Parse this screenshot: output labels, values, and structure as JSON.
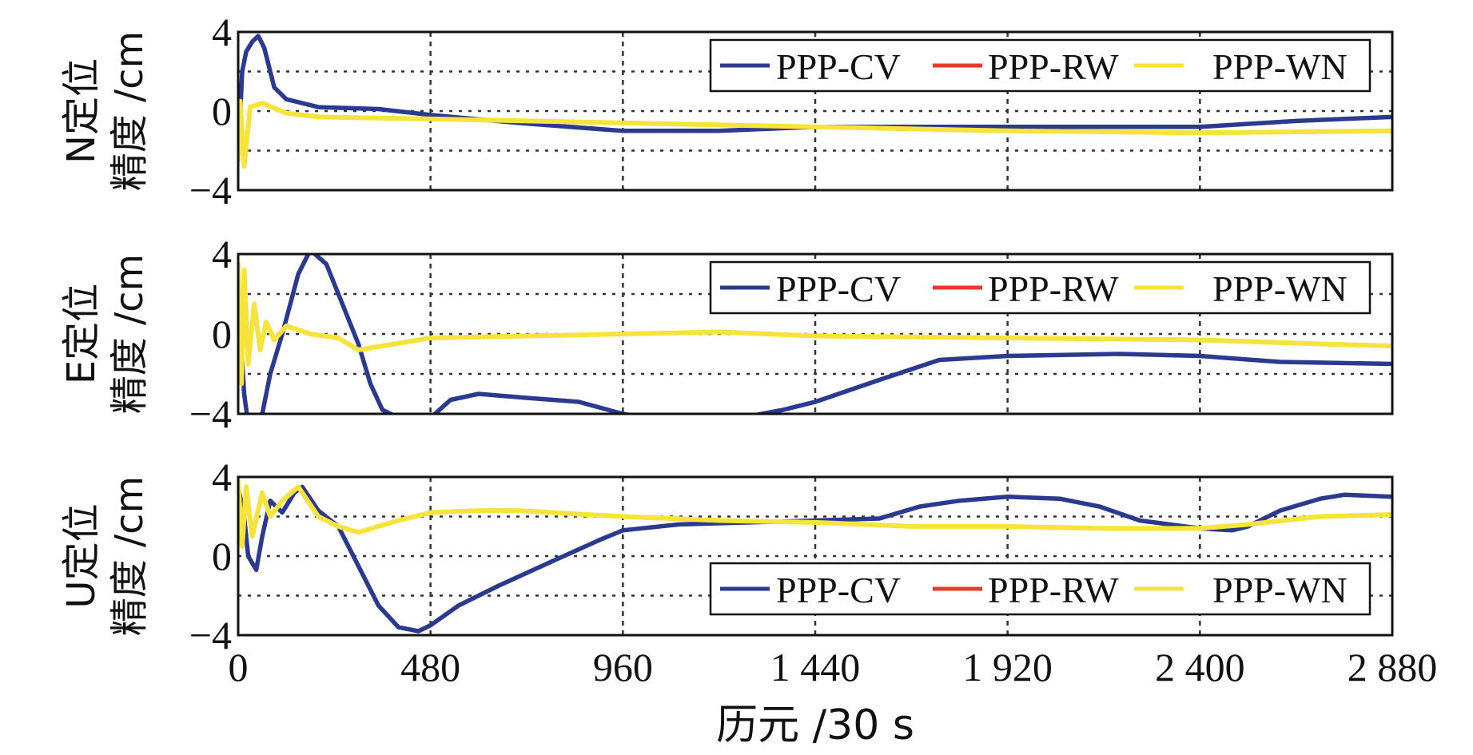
{
  "colors": {
    "cv": "#2b3990",
    "rw": "#e8392d",
    "wn": "#f6e33b",
    "grid": "#333333",
    "frame": "#111111"
  },
  "x_axis": {
    "label": "历元 /30 s",
    "ticks": [
      "0",
      "480",
      "960",
      "1 440",
      "1 920",
      "2 400",
      "2 880"
    ]
  },
  "legend": {
    "cv": "PPP-CV",
    "rw": "PPP-RW",
    "wn": "PPP-WN"
  },
  "chart_data": [
    {
      "type": "line",
      "title": "",
      "xlabel": "历元 /30 s",
      "ylabel_line1": "N定位",
      "ylabel_line2": "精度 /cm",
      "ylim": [
        -4,
        4
      ],
      "xlim": [
        0,
        2880
      ],
      "ytick_labels": [
        "4",
        "0",
        "−4"
      ],
      "grid": true,
      "legend_position": "top-right",
      "series": [
        {
          "name": "PPP-CV",
          "points": [
            [
              0,
              -2.5
            ],
            [
              10,
              2
            ],
            [
              20,
              3
            ],
            [
              35,
              3.5
            ],
            [
              50,
              3.8
            ],
            [
              65,
              3.2
            ],
            [
              90,
              1.2
            ],
            [
              120,
              0.6
            ],
            [
              200,
              0.2
            ],
            [
              350,
              0.1
            ],
            [
              480,
              -0.2
            ],
            [
              700,
              -0.6
            ],
            [
              960,
              -1.0
            ],
            [
              1200,
              -1.0
            ],
            [
              1440,
              -0.8
            ],
            [
              1920,
              -0.8
            ],
            [
              2400,
              -0.8
            ],
            [
              2640,
              -0.5
            ],
            [
              2880,
              -0.3
            ]
          ]
        },
        {
          "name": "PPP-RW",
          "points": [
            [
              0,
              -2.5
            ],
            [
              5,
              0.5
            ],
            [
              15,
              -2.8
            ],
            [
              30,
              0.2
            ],
            [
              60,
              0.4
            ],
            [
              120,
              -0.1
            ],
            [
              200,
              -0.3
            ],
            [
              480,
              -0.4
            ],
            [
              960,
              -0.6
            ],
            [
              1440,
              -0.8
            ],
            [
              1920,
              -1.0
            ],
            [
              2400,
              -1.1
            ],
            [
              2880,
              -1.0
            ]
          ]
        },
        {
          "name": "PPP-WN",
          "points": [
            [
              0,
              -2.5
            ],
            [
              5,
              0.5
            ],
            [
              15,
              -2.8
            ],
            [
              30,
              0.2
            ],
            [
              60,
              0.4
            ],
            [
              120,
              -0.1
            ],
            [
              200,
              -0.3
            ],
            [
              480,
              -0.4
            ],
            [
              960,
              -0.6
            ],
            [
              1440,
              -0.8
            ],
            [
              1920,
              -1.0
            ],
            [
              2400,
              -1.1
            ],
            [
              2880,
              -1.0
            ]
          ]
        }
      ]
    },
    {
      "type": "line",
      "title": "",
      "xlabel": "历元 /30 s",
      "ylabel_line1": "E定位",
      "ylabel_line2": "精度 /cm",
      "ylim": [
        -4,
        4
      ],
      "xlim": [
        0,
        2880
      ],
      "ytick_labels": [
        "4",
        "0",
        "−4"
      ],
      "grid": true,
      "legend_position": "top-right",
      "series": [
        {
          "name": "PPP-CV",
          "points": [
            [
              0,
              2
            ],
            [
              15,
              -3
            ],
            [
              25,
              -4.5
            ],
            [
              50,
              -5
            ],
            [
              80,
              -2
            ],
            [
              110,
              0
            ],
            [
              150,
              3
            ],
            [
              180,
              4.2
            ],
            [
              220,
              3.5
            ],
            [
              260,
              1.5
            ],
            [
              300,
              -0.5
            ],
            [
              330,
              -2.5
            ],
            [
              360,
              -3.8
            ],
            [
              400,
              -4.2
            ],
            [
              480,
              -4.2
            ],
            [
              530,
              -3.3
            ],
            [
              600,
              -3.0
            ],
            [
              720,
              -3.2
            ],
            [
              850,
              -3.4
            ],
            [
              960,
              -4.0
            ],
            [
              1100,
              -4.5
            ],
            [
              1200,
              -4.4
            ],
            [
              1360,
              -3.8
            ],
            [
              1440,
              -3.4
            ],
            [
              1600,
              -2.3
            ],
            [
              1750,
              -1.3
            ],
            [
              1920,
              -1.1
            ],
            [
              2200,
              -1.0
            ],
            [
              2400,
              -1.1
            ],
            [
              2600,
              -1.4
            ],
            [
              2880,
              -1.5
            ]
          ]
        },
        {
          "name": "PPP-RW",
          "points": [
            [
              0,
              3.5
            ],
            [
              8,
              -2.5
            ],
            [
              15,
              3.2
            ],
            [
              25,
              -1.5
            ],
            [
              40,
              1.5
            ],
            [
              55,
              -0.8
            ],
            [
              70,
              0.6
            ],
            [
              90,
              -0.3
            ],
            [
              120,
              0.4
            ],
            [
              180,
              0
            ],
            [
              250,
              -0.2
            ],
            [
              300,
              -0.8
            ],
            [
              360,
              -0.6
            ],
            [
              480,
              -0.2
            ],
            [
              960,
              0
            ],
            [
              1200,
              0.1
            ],
            [
              1440,
              -0.1
            ],
            [
              1920,
              -0.2
            ],
            [
              2400,
              -0.3
            ],
            [
              2700,
              -0.5
            ],
            [
              2880,
              -0.6
            ]
          ]
        },
        {
          "name": "PPP-WN",
          "points": [
            [
              0,
              3.5
            ],
            [
              8,
              -2.5
            ],
            [
              15,
              3.2
            ],
            [
              25,
              -1.5
            ],
            [
              40,
              1.5
            ],
            [
              55,
              -0.8
            ],
            [
              70,
              0.6
            ],
            [
              90,
              -0.3
            ],
            [
              120,
              0.4
            ],
            [
              180,
              0
            ],
            [
              250,
              -0.2
            ],
            [
              300,
              -0.8
            ],
            [
              360,
              -0.6
            ],
            [
              480,
              -0.2
            ],
            [
              960,
              0
            ],
            [
              1200,
              0.1
            ],
            [
              1440,
              -0.1
            ],
            [
              1920,
              -0.2
            ],
            [
              2400,
              -0.3
            ],
            [
              2700,
              -0.5
            ],
            [
              2880,
              -0.6
            ]
          ]
        }
      ]
    },
    {
      "type": "line",
      "title": "",
      "xlabel": "历元 /30 s",
      "ylabel_line1": "U定位",
      "ylabel_line2": "精度 /cm",
      "ylim": [
        -4,
        4
      ],
      "xlim": [
        0,
        2880
      ],
      "ytick_labels": [
        "4",
        "0",
        "−4"
      ],
      "grid": true,
      "legend_position": "bottom-right",
      "series": [
        {
          "name": "PPP-CV",
          "points": [
            [
              0,
              3.5
            ],
            [
              15,
              2
            ],
            [
              25,
              0
            ],
            [
              45,
              -0.7
            ],
            [
              60,
              1
            ],
            [
              80,
              2.8
            ],
            [
              110,
              2.2
            ],
            [
              140,
              3.2
            ],
            [
              160,
              3.5
            ],
            [
              200,
              2.3
            ],
            [
              250,
              1.5
            ],
            [
              300,
              -0.5
            ],
            [
              350,
              -2.5
            ],
            [
              400,
              -3.6
            ],
            [
              450,
              -3.8
            ],
            [
              480,
              -3.5
            ],
            [
              550,
              -2.5
            ],
            [
              650,
              -1.5
            ],
            [
              780,
              -0.3
            ],
            [
              900,
              0.8
            ],
            [
              960,
              1.3
            ],
            [
              1100,
              1.6
            ],
            [
              1440,
              1.8
            ],
            [
              1600,
              1.9
            ],
            [
              1700,
              2.5
            ],
            [
              1800,
              2.8
            ],
            [
              1920,
              3.0
            ],
            [
              2050,
              2.9
            ],
            [
              2150,
              2.5
            ],
            [
              2250,
              1.8
            ],
            [
              2400,
              1.4
            ],
            [
              2480,
              1.3
            ],
            [
              2520,
              1.5
            ],
            [
              2600,
              2.3
            ],
            [
              2700,
              2.9
            ],
            [
              2760,
              3.1
            ],
            [
              2880,
              3.0
            ]
          ]
        },
        {
          "name": "PPP-RW",
          "points": [
            [
              0,
              3.8
            ],
            [
              10,
              0.5
            ],
            [
              20,
              3.5
            ],
            [
              35,
              1
            ],
            [
              60,
              3.2
            ],
            [
              80,
              2
            ],
            [
              110,
              2.8
            ],
            [
              150,
              3.5
            ],
            [
              200,
              2
            ],
            [
              250,
              1.5
            ],
            [
              300,
              1.2
            ],
            [
              350,
              1.5
            ],
            [
              400,
              1.8
            ],
            [
              480,
              2.2
            ],
            [
              600,
              2.3
            ],
            [
              700,
              2.3
            ],
            [
              960,
              2.0
            ],
            [
              1200,
              1.8
            ],
            [
              1440,
              1.7
            ],
            [
              1680,
              1.5
            ],
            [
              1920,
              1.5
            ],
            [
              2160,
              1.4
            ],
            [
              2400,
              1.4
            ],
            [
              2520,
              1.6
            ],
            [
              2700,
              2.0
            ],
            [
              2880,
              2.1
            ]
          ]
        },
        {
          "name": "PPP-WN",
          "points": [
            [
              0,
              3.8
            ],
            [
              10,
              0.5
            ],
            [
              20,
              3.5
            ],
            [
              35,
              1
            ],
            [
              60,
              3.2
            ],
            [
              80,
              2
            ],
            [
              110,
              2.8
            ],
            [
              150,
              3.5
            ],
            [
              200,
              2
            ],
            [
              250,
              1.5
            ],
            [
              300,
              1.2
            ],
            [
              350,
              1.5
            ],
            [
              400,
              1.8
            ],
            [
              480,
              2.2
            ],
            [
              600,
              2.3
            ],
            [
              700,
              2.3
            ],
            [
              960,
              2.0
            ],
            [
              1200,
              1.8
            ],
            [
              1440,
              1.7
            ],
            [
              1680,
              1.5
            ],
            [
              1920,
              1.5
            ],
            [
              2160,
              1.4
            ],
            [
              2400,
              1.4
            ],
            [
              2520,
              1.6
            ],
            [
              2700,
              2.0
            ],
            [
              2880,
              2.1
            ]
          ]
        }
      ]
    }
  ]
}
